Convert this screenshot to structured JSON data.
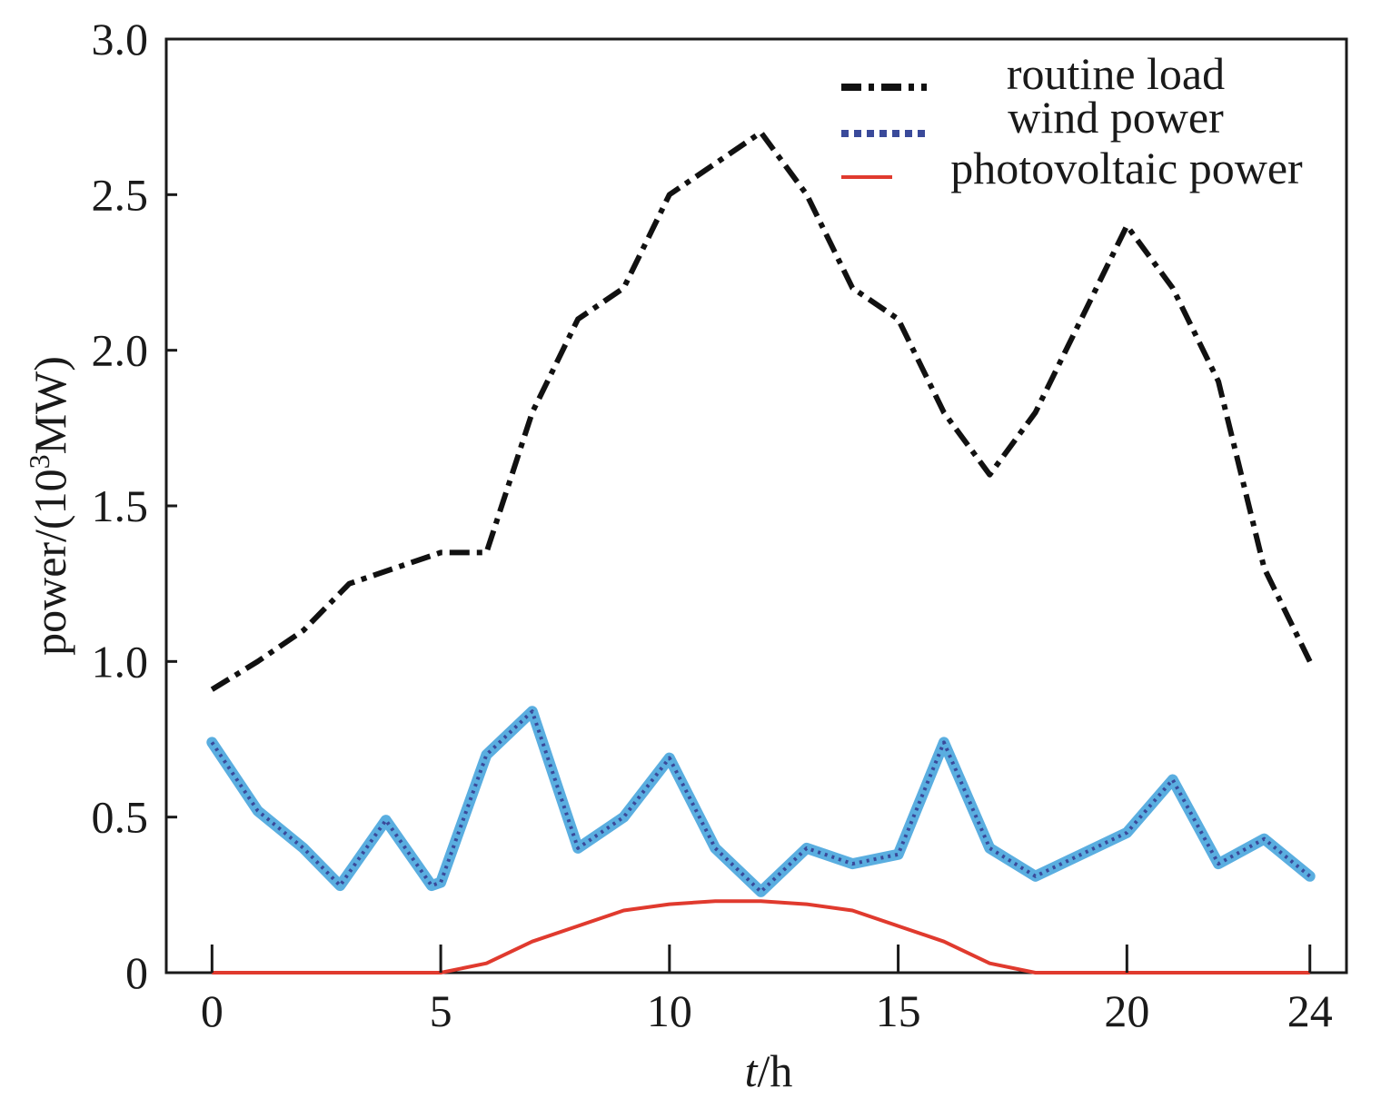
{
  "chart_data": {
    "type": "line",
    "xlabel_italic": "t",
    "xlabel_unit": "/h",
    "ylabel_prefix": "power/(10",
    "ylabel_sup": "3",
    "ylabel_suffix": "MW)",
    "xlim": [
      -1,
      24.8
    ],
    "ylim": [
      0,
      3.0
    ],
    "xticks": [
      0,
      5,
      10,
      15,
      20,
      24
    ],
    "xtick_labels": [
      "0",
      "5",
      "10",
      "15",
      "20",
      "24"
    ],
    "yticks": [
      0,
      0.5,
      1.0,
      1.5,
      2.0,
      2.5,
      3.0
    ],
    "ytick_labels": [
      "0",
      "0.5",
      "1.0",
      "1.5",
      "2.0",
      "2.5",
      "3.0"
    ],
    "grid": false,
    "legend_position": "top-right",
    "series": [
      {
        "name": "routine load",
        "style": "dashdot",
        "color": "#111111",
        "x": [
          0,
          1,
          2,
          3,
          4,
          5,
          6,
          7,
          8,
          9,
          10,
          11,
          12,
          13,
          14,
          15,
          16,
          17,
          18,
          19,
          20,
          21,
          22,
          23,
          24
        ],
        "y": [
          0.91,
          1.0,
          1.1,
          1.25,
          1.3,
          1.35,
          1.35,
          1.8,
          2.1,
          2.2,
          2.5,
          2.6,
          2.7,
          2.5,
          2.2,
          2.1,
          1.8,
          1.6,
          1.8,
          2.1,
          2.4,
          2.2,
          1.9,
          1.3,
          1.0
        ]
      },
      {
        "name": "wind power",
        "style": "dotted",
        "color": "#3a4a9a",
        "halo_color": "#5aaee0",
        "x": [
          0,
          1,
          2,
          2.8,
          3.8,
          4.8,
          5.0,
          6.0,
          7.0,
          8.0,
          9.0,
          10.0,
          11.0,
          12.0,
          13.0,
          14.0,
          15.0,
          16.0,
          17.0,
          18.0,
          19.0,
          20.0,
          21.0,
          22.0,
          23.0,
          24.0
        ],
        "y": [
          0.74,
          0.52,
          0.4,
          0.28,
          0.49,
          0.28,
          0.29,
          0.7,
          0.84,
          0.4,
          0.5,
          0.69,
          0.4,
          0.26,
          0.4,
          0.35,
          0.38,
          0.74,
          0.4,
          0.31,
          0.38,
          0.45,
          0.62,
          0.35,
          0.43,
          0.31
        ]
      },
      {
        "name": "photovoltaic power",
        "style": "solid",
        "color": "#e03a2e",
        "x": [
          0,
          1,
          2,
          3,
          4,
          5,
          6,
          7,
          8,
          9,
          10,
          11,
          12,
          13,
          14,
          15,
          16,
          17,
          18,
          19,
          20,
          21,
          22,
          23,
          24
        ],
        "y": [
          0,
          0,
          0,
          0,
          0,
          0,
          0.03,
          0.1,
          0.15,
          0.2,
          0.22,
          0.23,
          0.23,
          0.22,
          0.2,
          0.15,
          0.1,
          0.03,
          0,
          0,
          0,
          0,
          0,
          0,
          0
        ]
      }
    ]
  }
}
